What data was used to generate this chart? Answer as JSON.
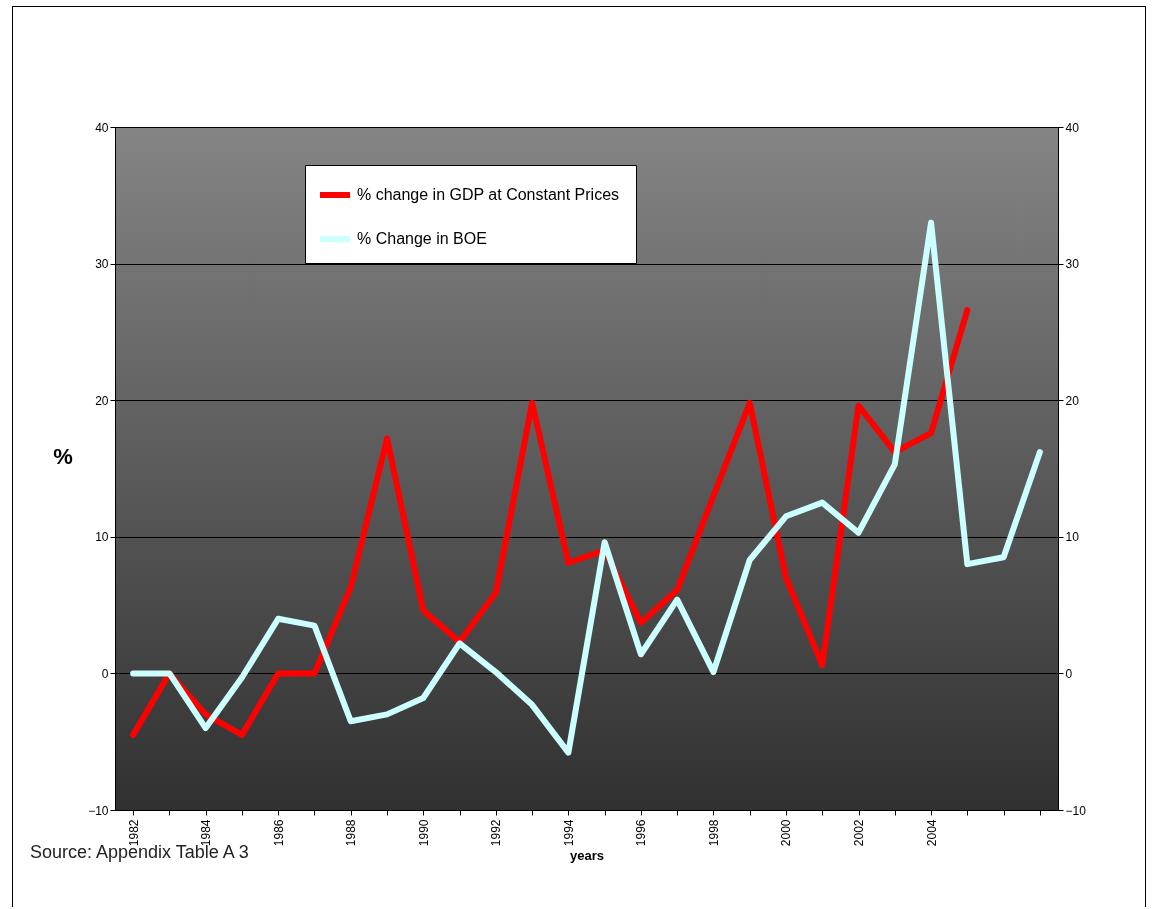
{
  "chart_data": {
    "type": "line",
    "xlabel": "years",
    "ylabel": "%",
    "categories": [
      "1982",
      null,
      "1984",
      null,
      "1986",
      null,
      "1988",
      null,
      "1990",
      null,
      "1992",
      null,
      "1994",
      null,
      "1996",
      null,
      "1998",
      null,
      "2000",
      null,
      "2002",
      null,
      "2004",
      null,
      null,
      null
    ],
    "series": [
      {
        "name": "% change in GDP at Constant  Prices",
        "color": "#ff0000",
        "values": [
          -4.5,
          0,
          -3,
          -4.5,
          0,
          0,
          6.3,
          17.2,
          4.6,
          2.3,
          5.9,
          19.8,
          8.1,
          9,
          3.7,
          6.1,
          13,
          19.8,
          7,
          0.6,
          19.6,
          16.2,
          17.6,
          26.6,
          null,
          null
        ]
      },
      {
        "name": "% Change  in  BOE",
        "color": "#ccffff",
        "values": [
          0,
          0,
          -4,
          -0.3,
          4,
          3.5,
          -3.5,
          -3,
          -1.8,
          2.2,
          0.1,
          -2.3,
          -5.8,
          9.6,
          1.4,
          5.4,
          0.1,
          8.3,
          11.5,
          12.5,
          10.3,
          15.3,
          33,
          8,
          8.5,
          16.2
        ]
      }
    ],
    "ylim": [
      -10,
      40
    ],
    "yticks": [
      -10,
      0,
      10,
      20,
      30,
      40
    ],
    "y2lim": [
      -10,
      40
    ],
    "y2ticks": [
      -10,
      0,
      10,
      20,
      30,
      40
    ],
    "grid": "y",
    "legend": "top",
    "marker": "none",
    "line_style": "solid",
    "annotations": [
      "Source: Appendix Table A 3"
    ]
  }
}
